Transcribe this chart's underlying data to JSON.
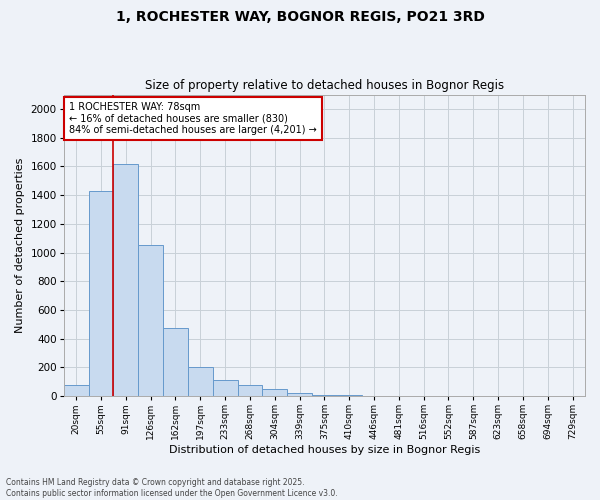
{
  "title1": "1, ROCHESTER WAY, BOGNOR REGIS, PO21 3RD",
  "title2": "Size of property relative to detached houses in Bognor Regis",
  "xlabel": "Distribution of detached houses by size in Bognor Regis",
  "ylabel": "Number of detached properties",
  "categories": [
    "20sqm",
    "55sqm",
    "91sqm",
    "126sqm",
    "162sqm",
    "197sqm",
    "233sqm",
    "268sqm",
    "304sqm",
    "339sqm",
    "375sqm",
    "410sqm",
    "446sqm",
    "481sqm",
    "516sqm",
    "552sqm",
    "587sqm",
    "623sqm",
    "658sqm",
    "694sqm",
    "729sqm"
  ],
  "values": [
    75,
    1425,
    1615,
    1050,
    475,
    200,
    115,
    75,
    50,
    25,
    10,
    5,
    3,
    2,
    1,
    1,
    0,
    0,
    0,
    0,
    0
  ],
  "bar_color": "#c8daef",
  "bar_edge_color": "#6699cc",
  "marker_label": "1 ROCHESTER WAY: 78sqm",
  "pct_smaller": "16% of detached houses are smaller (830)",
  "pct_larger": "84% of semi-detached houses are larger (4,201)",
  "annotation_box_color": "#cc0000",
  "vline_color": "#cc0000",
  "grid_color": "#c8d0d8",
  "background_color": "#eef2f8",
  "plot_bg_color": "#eef2f8",
  "ylim": [
    0,
    2100
  ],
  "yticks": [
    0,
    200,
    400,
    600,
    800,
    1000,
    1200,
    1400,
    1600,
    1800,
    2000
  ],
  "footer1": "Contains HM Land Registry data © Crown copyright and database right 2025.",
  "footer2": "Contains public sector information licensed under the Open Government Licence v3.0."
}
